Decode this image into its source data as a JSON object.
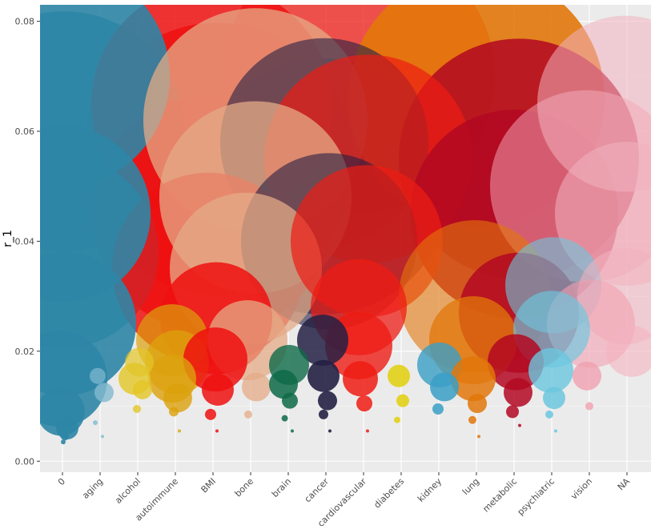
{
  "chart_data": {
    "type": "scatter",
    "ylabel": "r_1",
    "xlabel": "",
    "ylim": [
      -0.002,
      0.083
    ],
    "yticks": [
      0.0,
      0.02,
      0.04,
      0.06,
      0.08
    ],
    "ytick_labels": [
      "0.00",
      "0.02",
      "0.04",
      "0.06",
      "0.08"
    ],
    "grid": true,
    "categories": [
      "0",
      "aging",
      "alcohol",
      "autoimmune",
      "BMI",
      "bone",
      "brain",
      "cancer",
      "cardiovascular",
      "diabetes",
      "kidney",
      "lung",
      "metabolic",
      "psychiatric",
      "vision",
      "NA"
    ],
    "colors": {
      "0": "#2E86A6",
      "aging": "#82B9D0",
      "alcohol": "#E3C526",
      "autoimmune": "#DCA10C",
      "BMI": "#EE1010",
      "bone": "#E4AB87",
      "brain": "#0E6A48",
      "cancer": "#252044",
      "cardiovascular": "#EE1C14",
      "diabetes": "#E2CF0C",
      "kidney": "#3A9FC6",
      "lung": "#E2770A",
      "metabolic": "#B30822",
      "psychiatric": "#6CC7DF",
      "vision": "#F1A0B0",
      "NA": "#F3B2BF"
    },
    "points": [
      {
        "cat": "0",
        "y": 0.06,
        "size": 150,
        "alpha": 0.9
      },
      {
        "cat": "0",
        "y": 0.07,
        "size": 140,
        "alpha": 0.9
      },
      {
        "cat": "0",
        "y": 0.045,
        "size": 110,
        "alpha": 0.9
      },
      {
        "cat": "0",
        "y": 0.038,
        "size": 120,
        "alpha": 0.85
      },
      {
        "cat": "0",
        "y": 0.025,
        "size": 90,
        "alpha": 0.9
      },
      {
        "cat": "0",
        "y": 0.015,
        "size": 60,
        "alpha": 0.9
      },
      {
        "cat": "0",
        "y": 0.009,
        "size": 30,
        "alpha": 0.9
      },
      {
        "cat": "0",
        "y": 0.006,
        "size": 14,
        "alpha": 0.9
      },
      {
        "cat": "0",
        "y": 0.0045,
        "size": 5,
        "alpha": 0.9
      },
      {
        "cat": "0",
        "y": 0.0035,
        "size": 3,
        "alpha": 0.9
      },
      {
        "cat": "aging",
        "y": 0.0125,
        "size": 12,
        "alpha": 0.8
      },
      {
        "cat": "aging",
        "y": 0.0155,
        "size": 10,
        "alpha": 0.7
      },
      {
        "cat": "aging",
        "y": 0.007,
        "size": 3,
        "alpha": 0.8
      },
      {
        "cat": "aging",
        "y": 0.0045,
        "size": 2,
        "alpha": 0.8
      },
      {
        "cat": "alcohol",
        "y": 0.015,
        "size": 20,
        "alpha": 0.8
      },
      {
        "cat": "alcohol",
        "y": 0.018,
        "size": 18,
        "alpha": 0.7
      },
      {
        "cat": "alcohol",
        "y": 0.013,
        "size": 12,
        "alpha": 0.8
      },
      {
        "cat": "alcohol",
        "y": 0.0095,
        "size": 5,
        "alpha": 0.8
      },
      {
        "cat": "autoimmune",
        "y": 0.018,
        "size": 40,
        "alpha": 0.75
      },
      {
        "cat": "autoimmune",
        "y": 0.022,
        "size": 45,
        "alpha": 0.7
      },
      {
        "cat": "autoimmune",
        "y": 0.015,
        "size": 30,
        "alpha": 0.8
      },
      {
        "cat": "autoimmune",
        "y": 0.0115,
        "size": 18,
        "alpha": 0.8
      },
      {
        "cat": "autoimmune",
        "y": 0.009,
        "size": 6,
        "alpha": 0.8
      },
      {
        "cat": "autoimmune",
        "y": 0.0055,
        "size": 2,
        "alpha": 0.8
      },
      {
        "cat": "BMI",
        "y": 0.065,
        "size": 150,
        "alpha": 0.85
      },
      {
        "cat": "BMI",
        "y": 0.055,
        "size": 170,
        "alpha": 0.85
      },
      {
        "cat": "BMI",
        "y": 0.045,
        "size": 150,
        "alpha": 0.85
      },
      {
        "cat": "BMI",
        "y": 0.035,
        "size": 120,
        "alpha": 0.85
      },
      {
        "cat": "BMI",
        "y": 0.026,
        "size": 70,
        "alpha": 0.85
      },
      {
        "cat": "BMI",
        "y": 0.0185,
        "size": 40,
        "alpha": 0.85
      },
      {
        "cat": "BMI",
        "y": 0.013,
        "size": 20,
        "alpha": 0.85
      },
      {
        "cat": "BMI",
        "y": 0.0085,
        "size": 7,
        "alpha": 0.85
      },
      {
        "cat": "BMI",
        "y": 0.0055,
        "size": 2,
        "alpha": 0.85
      },
      {
        "cat": "bone",
        "y": 0.062,
        "size": 140,
        "alpha": 0.75
      },
      {
        "cat": "bone",
        "y": 0.048,
        "size": 120,
        "alpha": 0.75
      },
      {
        "cat": "bone",
        "y": 0.035,
        "size": 95,
        "alpha": 0.75
      },
      {
        "cat": "bone",
        "y": 0.022,
        "size": 50,
        "alpha": 0.75
      },
      {
        "cat": "bone",
        "y": 0.0135,
        "size": 18,
        "alpha": 0.75
      },
      {
        "cat": "bone",
        "y": 0.0085,
        "size": 5,
        "alpha": 0.75
      },
      {
        "cat": "brain",
        "y": 0.0175,
        "size": 25,
        "alpha": 0.8
      },
      {
        "cat": "brain",
        "y": 0.014,
        "size": 18,
        "alpha": 0.85
      },
      {
        "cat": "brain",
        "y": 0.011,
        "size": 10,
        "alpha": 0.85
      },
      {
        "cat": "brain",
        "y": 0.0078,
        "size": 4,
        "alpha": 0.85
      },
      {
        "cat": "brain",
        "y": 0.0055,
        "size": 2,
        "alpha": 0.85
      },
      {
        "cat": "cancer",
        "y": 0.058,
        "size": 130,
        "alpha": 0.6
      },
      {
        "cat": "cancer",
        "y": 0.05,
        "size": 160,
        "alpha": 0.6
      },
      {
        "cat": "cancer",
        "y": 0.04,
        "size": 110,
        "alpha": 0.6
      },
      {
        "cat": "cancer",
        "y": 0.022,
        "size": 32,
        "alpha": 0.85
      },
      {
        "cat": "cancer",
        "y": 0.0155,
        "size": 20,
        "alpha": 0.9
      },
      {
        "cat": "cancer",
        "y": 0.011,
        "size": 12,
        "alpha": 0.9
      },
      {
        "cat": "cancer",
        "y": 0.0085,
        "size": 6,
        "alpha": 0.9
      },
      {
        "cat": "cancer",
        "y": 0.0055,
        "size": 2,
        "alpha": 0.9
      },
      {
        "cat": "cardiovascular",
        "y": 0.07,
        "size": 170,
        "alpha": 0.75
      },
      {
        "cat": "cardiovascular",
        "y": 0.055,
        "size": 130,
        "alpha": 0.7
      },
      {
        "cat": "cardiovascular",
        "y": 0.04,
        "size": 95,
        "alpha": 0.7
      },
      {
        "cat": "cardiovascular",
        "y": 0.028,
        "size": 60,
        "alpha": 0.75
      },
      {
        "cat": "cardiovascular",
        "y": 0.021,
        "size": 42,
        "alpha": 0.8
      },
      {
        "cat": "cardiovascular",
        "y": 0.015,
        "size": 22,
        "alpha": 0.85
      },
      {
        "cat": "cardiovascular",
        "y": 0.0105,
        "size": 10,
        "alpha": 0.85
      },
      {
        "cat": "cardiovascular",
        "y": 0.0055,
        "size": 2,
        "alpha": 0.85
      },
      {
        "cat": "diabetes",
        "y": 0.0155,
        "size": 14,
        "alpha": 0.85
      },
      {
        "cat": "diabetes",
        "y": 0.011,
        "size": 8,
        "alpha": 0.85
      },
      {
        "cat": "diabetes",
        "y": 0.0075,
        "size": 4,
        "alpha": 0.85
      },
      {
        "cat": "kidney",
        "y": 0.0175,
        "size": 28,
        "alpha": 0.8
      },
      {
        "cat": "kidney",
        "y": 0.0135,
        "size": 18,
        "alpha": 0.85
      },
      {
        "cat": "kidney",
        "y": 0.0095,
        "size": 7,
        "alpha": 0.85
      },
      {
        "cat": "lung",
        "y": 0.066,
        "size": 160,
        "alpha": 0.9
      },
      {
        "cat": "lung",
        "y": 0.03,
        "size": 95,
        "alpha": 0.6
      },
      {
        "cat": "lung",
        "y": 0.022,
        "size": 55,
        "alpha": 0.75
      },
      {
        "cat": "lung",
        "y": 0.015,
        "size": 28,
        "alpha": 0.85
      },
      {
        "cat": "lung",
        "y": 0.0105,
        "size": 12,
        "alpha": 0.85
      },
      {
        "cat": "lung",
        "y": 0.0075,
        "size": 5,
        "alpha": 0.85
      },
      {
        "cat": "lung",
        "y": 0.0045,
        "size": 2,
        "alpha": 0.85
      },
      {
        "cat": "metabolic",
        "y": 0.055,
        "size": 150,
        "alpha": 0.85
      },
      {
        "cat": "metabolic",
        "y": 0.045,
        "size": 130,
        "alpha": 0.85
      },
      {
        "cat": "metabolic",
        "y": 0.027,
        "size": 75,
        "alpha": 0.85
      },
      {
        "cat": "metabolic",
        "y": 0.018,
        "size": 35,
        "alpha": 0.85
      },
      {
        "cat": "metabolic",
        "y": 0.0125,
        "size": 18,
        "alpha": 0.85
      },
      {
        "cat": "metabolic",
        "y": 0.009,
        "size": 8,
        "alpha": 0.85
      },
      {
        "cat": "metabolic",
        "y": 0.0065,
        "size": 2,
        "alpha": 0.85
      },
      {
        "cat": "psychiatric",
        "y": 0.032,
        "size": 60,
        "alpha": 0.6
      },
      {
        "cat": "psychiatric",
        "y": 0.024,
        "size": 48,
        "alpha": 0.65
      },
      {
        "cat": "psychiatric",
        "y": 0.0165,
        "size": 28,
        "alpha": 0.8
      },
      {
        "cat": "psychiatric",
        "y": 0.0115,
        "size": 14,
        "alpha": 0.85
      },
      {
        "cat": "psychiatric",
        "y": 0.0085,
        "size": 5,
        "alpha": 0.85
      },
      {
        "cat": "psychiatric",
        "y": 0.0055,
        "size": 2,
        "alpha": 0.85
      },
      {
        "cat": "vision",
        "y": 0.05,
        "size": 120,
        "alpha": 0.55
      },
      {
        "cat": "vision",
        "y": 0.025,
        "size": 55,
        "alpha": 0.6
      },
      {
        "cat": "vision",
        "y": 0.0155,
        "size": 18,
        "alpha": 0.8
      },
      {
        "cat": "vision",
        "y": 0.01,
        "size": 5,
        "alpha": 0.8
      },
      {
        "cat": "NA",
        "y": 0.065,
        "size": 110,
        "alpha": 0.55
      },
      {
        "cat": "NA",
        "y": 0.045,
        "size": 90,
        "alpha": 0.55
      },
      {
        "cat": "NA",
        "y": 0.03,
        "size": 60,
        "alpha": 0.55
      },
      {
        "cat": "NA",
        "y": 0.02,
        "size": 32,
        "alpha": 0.6
      }
    ]
  }
}
